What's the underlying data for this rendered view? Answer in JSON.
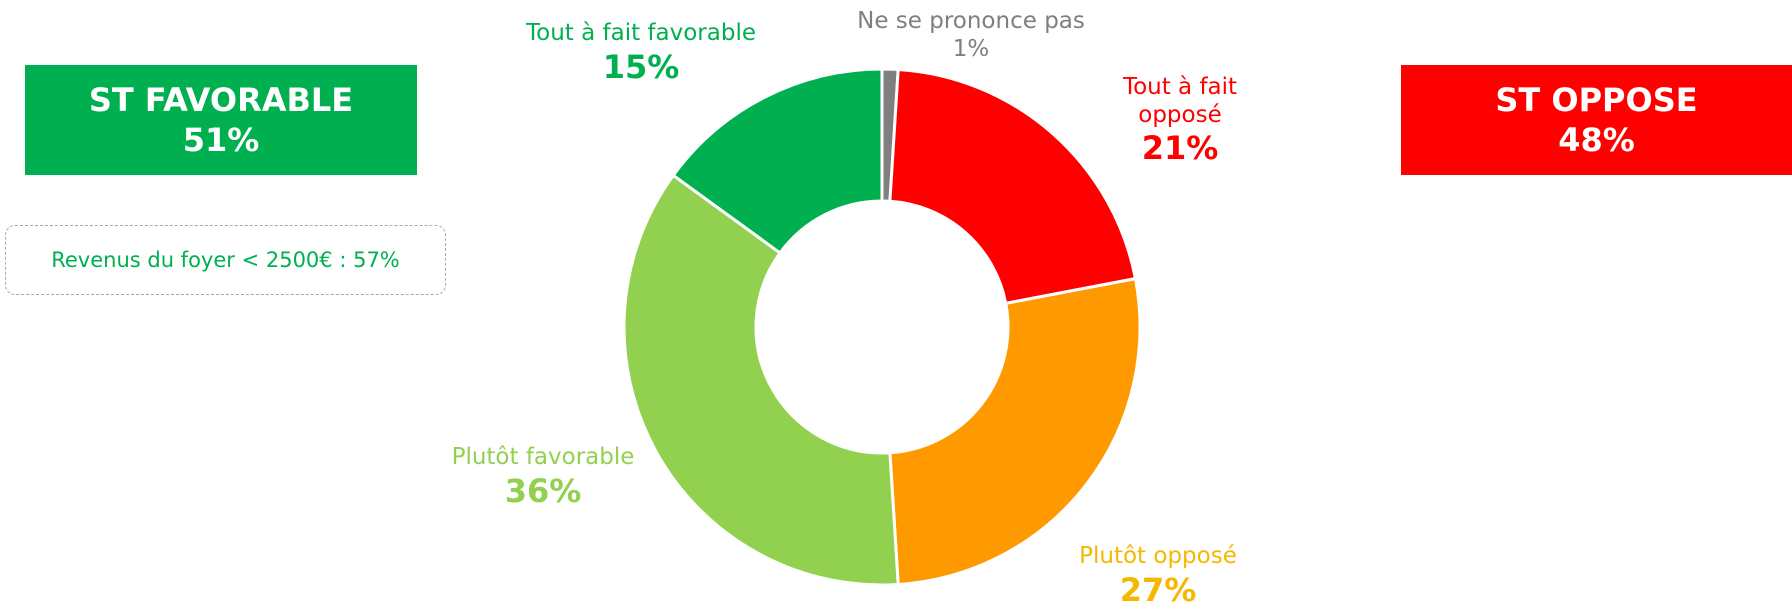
{
  "chart_data": {
    "type": "donut",
    "categories": [
      "Ne se prononce pas",
      "Tout à fait opposé",
      "Plutôt opposé",
      "Plutôt favorable",
      "Tout à fait favorable"
    ],
    "values": [
      1,
      21,
      27,
      36,
      15
    ],
    "value_labels": [
      "1%",
      "21%",
      "27%",
      "36%",
      "15%"
    ],
    "colors": [
      "#7f7f7f",
      "#ff0000",
      "#ff9900",
      "#92d050",
      "#00b050"
    ],
    "annotations": [
      {
        "title": "ST FAVORABLE",
        "value": "51%",
        "color": "#00b050"
      },
      {
        "title": "ST OPPOSE",
        "value": "48%",
        "color": "#ff0000"
      }
    ],
    "note": "Revenus du foyer < 2500€ : 57%"
  }
}
